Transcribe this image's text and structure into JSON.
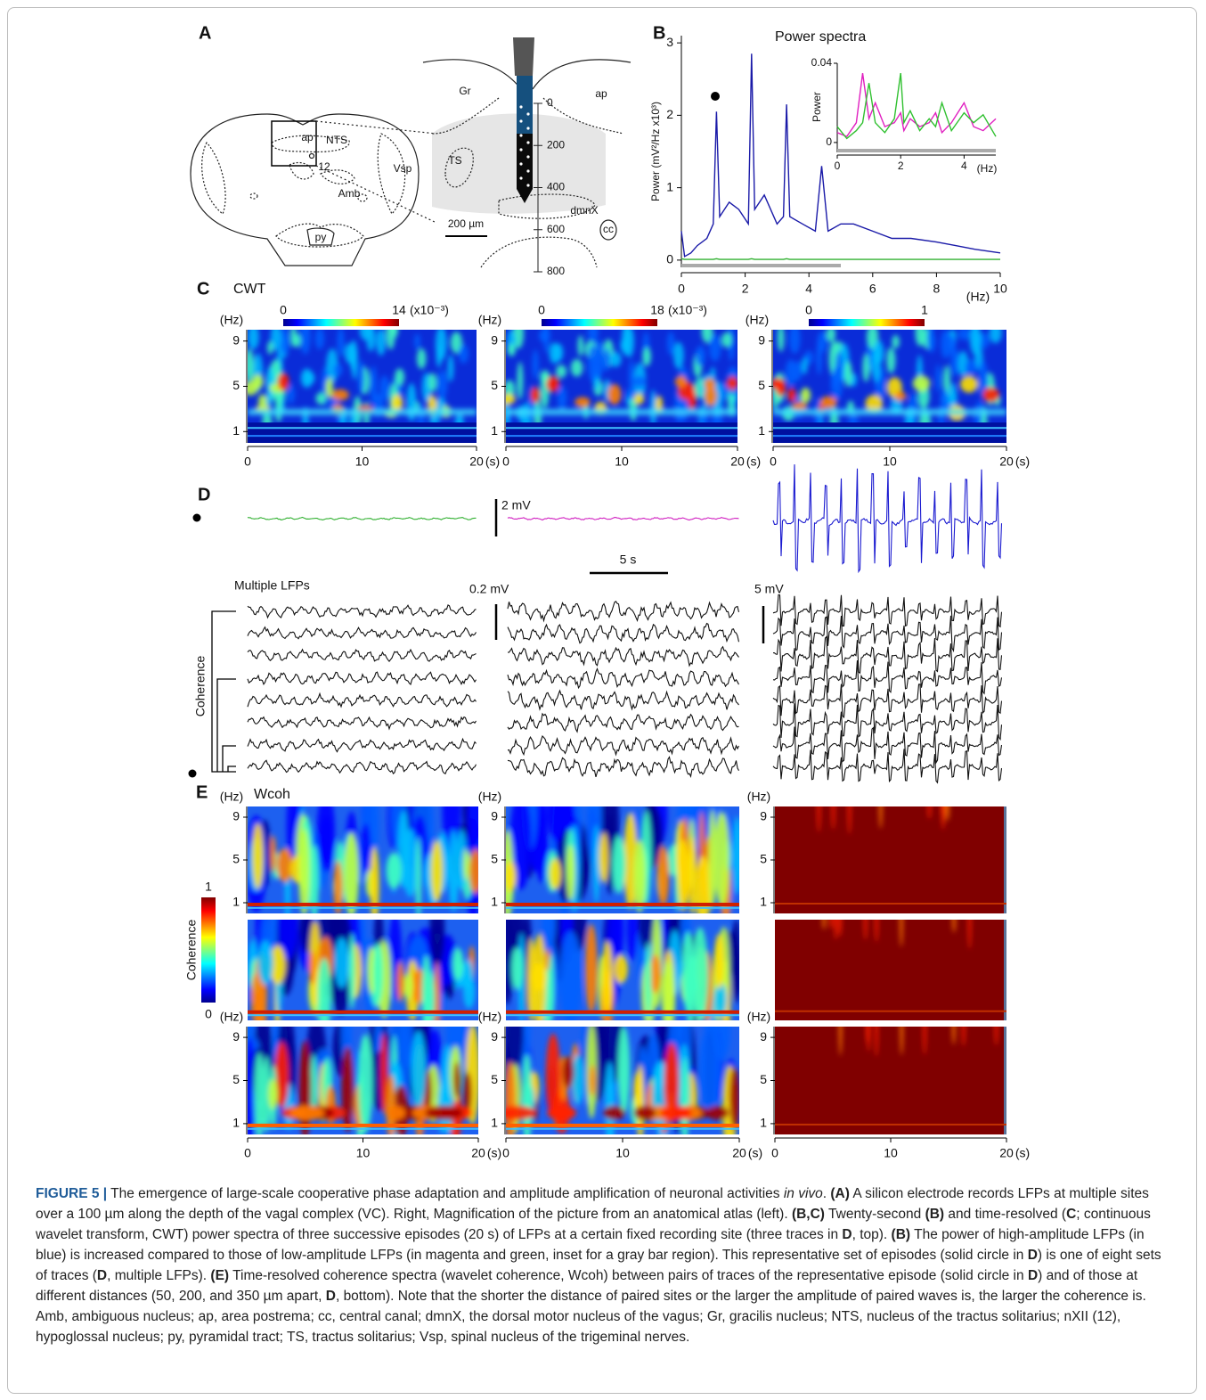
{
  "panel_labels": [
    "A",
    "B",
    "C",
    "D",
    "E"
  ],
  "panel_a": {
    "atlas_labels": [
      "ap",
      "NTS",
      "12",
      "Vsp",
      "Amb",
      "py"
    ],
    "magnified_labels": [
      "Gr",
      "ap",
      "TS",
      "dmnX",
      "cc"
    ],
    "scale_bar": "200 µm",
    "depth_ticks": [
      0,
      200,
      400,
      600,
      800
    ]
  },
  "chart_data": {
    "type": "line",
    "title": "Power spectra",
    "y_label": "Power (mV²/Hz x10³)",
    "x_label": "(Hz)",
    "xlim": [
      0,
      10
    ],
    "xticks": [
      0,
      2,
      4,
      6,
      8,
      10
    ],
    "ylim": [
      -0.1,
      3.1
    ],
    "yticks": [
      0,
      1,
      2,
      3
    ],
    "x": [
      0,
      0.1,
      0.3,
      0.5,
      0.8,
      1.0,
      1.1,
      1.2,
      1.5,
      1.8,
      2.1,
      2.2,
      2.3,
      2.6,
      3.0,
      3.2,
      3.3,
      3.4,
      3.8,
      4.2,
      4.4,
      4.6,
      5.0,
      5.4,
      6.0,
      6.6,
      7.2,
      8.0,
      8.6,
      9.2,
      10
    ],
    "series": [
      {
        "color": "#1a1aa8",
        "values": [
          0.4,
          0.05,
          0.1,
          0.2,
          0.3,
          0.5,
          2.05,
          0.6,
          0.8,
          0.7,
          0.5,
          2.85,
          0.7,
          0.9,
          0.5,
          0.6,
          2.15,
          0.6,
          0.5,
          0.4,
          1.3,
          0.4,
          0.5,
          0.5,
          0.4,
          0.3,
          0.3,
          0.25,
          0.2,
          0.15,
          0.1
        ]
      },
      {
        "color": "#30b030",
        "values": [
          0.02,
          0.01,
          0.01,
          0.01,
          0.01,
          0.01,
          0.02,
          0.01,
          0.01,
          0.01,
          0.01,
          0.02,
          0.01,
          0.01,
          0.01,
          0.01,
          0.02,
          0.01,
          0.01,
          0.01,
          0.01,
          0.01,
          0.01,
          0.01,
          0.01,
          0.01,
          0.01,
          0.01,
          0.01,
          0.01,
          0.01
        ]
      }
    ],
    "inset": {
      "y_label": "Power",
      "x_label": "(Hz)",
      "xlim": [
        0,
        5
      ],
      "xticks": [
        0,
        2,
        4
      ],
      "ylim": [
        -0.005,
        0.04
      ],
      "yticks": [
        0,
        0.04
      ],
      "x": [
        0,
        0.3,
        0.6,
        0.8,
        1.0,
        1.2,
        1.5,
        1.8,
        2.0,
        2.1,
        2.3,
        2.6,
        2.9,
        3.1,
        3.3,
        3.6,
        4.0,
        4.3,
        4.6,
        5.0
      ],
      "series": [
        {
          "color": "#e020c0",
          "values": [
            0.005,
            0.003,
            0.01,
            0.035,
            0.012,
            0.02,
            0.008,
            0.01,
            0.015,
            0.006,
            0.012,
            0.008,
            0.01,
            0.015,
            0.005,
            0.01,
            0.02,
            0.008,
            0.006,
            0.012
          ]
        },
        {
          "color": "#30c030",
          "values": [
            0.008,
            0.002,
            0.006,
            0.01,
            0.03,
            0.01,
            0.005,
            0.012,
            0.035,
            0.01,
            0.016,
            0.006,
            0.012,
            0.008,
            0.02,
            0.006,
            0.015,
            0.01,
            0.014,
            0.003
          ]
        }
      ]
    }
  },
  "panel_c": {
    "title": "CWT",
    "y_unit": "(Hz)",
    "x_unit": "(s)",
    "ylim": [
      0,
      10
    ],
    "yticks": [
      9,
      5,
      1
    ],
    "xlim": [
      0,
      20
    ],
    "xticks": [
      0,
      10,
      20
    ],
    "colorbars": [
      {
        "min": 0,
        "max": 14,
        "unit": "(x10⁻³)"
      },
      {
        "min": 0,
        "max": 18,
        "unit": "(x10⁻³)"
      },
      {
        "min": 0,
        "max": 1
      }
    ]
  },
  "panel_d": {
    "top_voltage_bar": "2 mV",
    "time_bar": "5 s",
    "multi_title": "Multiple LFPs",
    "low_voltage_bar": "0.2 mV",
    "high_voltage_bar": "5 mV",
    "bracket_label": "Coherence"
  },
  "panel_e": {
    "title": "Wcoh",
    "y_unit": "(Hz)",
    "x_unit": "(s)",
    "ylim": [
      0,
      10
    ],
    "yticks": [
      9,
      5,
      1
    ],
    "xlim": [
      0,
      20
    ],
    "xticks": [
      0,
      10,
      20
    ],
    "colorbar": {
      "min": 0,
      "max": 1,
      "label": "Coherence"
    }
  },
  "caption": [
    {
      "text": "FIGURE 5 |",
      "style": "figure-label"
    },
    {
      "text": " The emergence of large-scale cooperative phase adaptation and amplitude amplification of neuronal activities "
    },
    {
      "text": "in vivo",
      "style": "italic"
    },
    {
      "text": ". "
    },
    {
      "text": "(A)",
      "style": "bold"
    },
    {
      "text": " A silicon electrode records LFPs at multiple sites over a 100 µm along the depth of the vagal complex (VC). Right, Magnification of the picture from an anatomical atlas (left). "
    },
    {
      "text": "(B,C)",
      "style": "bold"
    },
    {
      "text": " Twenty-second "
    },
    {
      "text": "(B)",
      "style": "bold"
    },
    {
      "text": " and time-resolved ("
    },
    {
      "text": "C",
      "style": "bold"
    },
    {
      "text": "; continuous wavelet transform, CWT) power spectra of three successive episodes (20 s) of LFPs at a certain fixed recording site (three traces in "
    },
    {
      "text": "D",
      "style": "bold"
    },
    {
      "text": ", top). "
    },
    {
      "text": "(B)",
      "style": "bold"
    },
    {
      "text": " The power of high-amplitude LFPs (in blue) is increased compared to those of low-amplitude LFPs (in magenta and green, inset for a gray bar region). This representative set of episodes (solid circle in "
    },
    {
      "text": "D",
      "style": "bold"
    },
    {
      "text": ") is one of eight sets of traces ("
    },
    {
      "text": "D",
      "style": "bold"
    },
    {
      "text": ", multiple LFPs). "
    },
    {
      "text": "(E)",
      "style": "bold"
    },
    {
      "text": " Time-resolved coherence spectra (wavelet coherence, Wcoh) between pairs of traces of the representative episode (solid circle in "
    },
    {
      "text": "D",
      "style": "bold"
    },
    {
      "text": ") and of those at different distances (50, 200, and 350 µm apart, "
    },
    {
      "text": "D",
      "style": "bold"
    },
    {
      "text": ", bottom). Note that the shorter the distance of paired sites or the larger the amplitude of paired waves is, the larger the coherence is. Amb, ambiguous nucleus; ap, area postrema; cc, central canal; dmnX, the dorsal motor nucleus of the vagus; Gr, gracilis nucleus; NTS, nucleus of the tractus solitarius; nXII (12), hypoglossal nucleus; py, pyramidal tract; TS, tractus solitarius; Vsp, spinal nucleus of the trigeminal nerves."
    }
  ]
}
